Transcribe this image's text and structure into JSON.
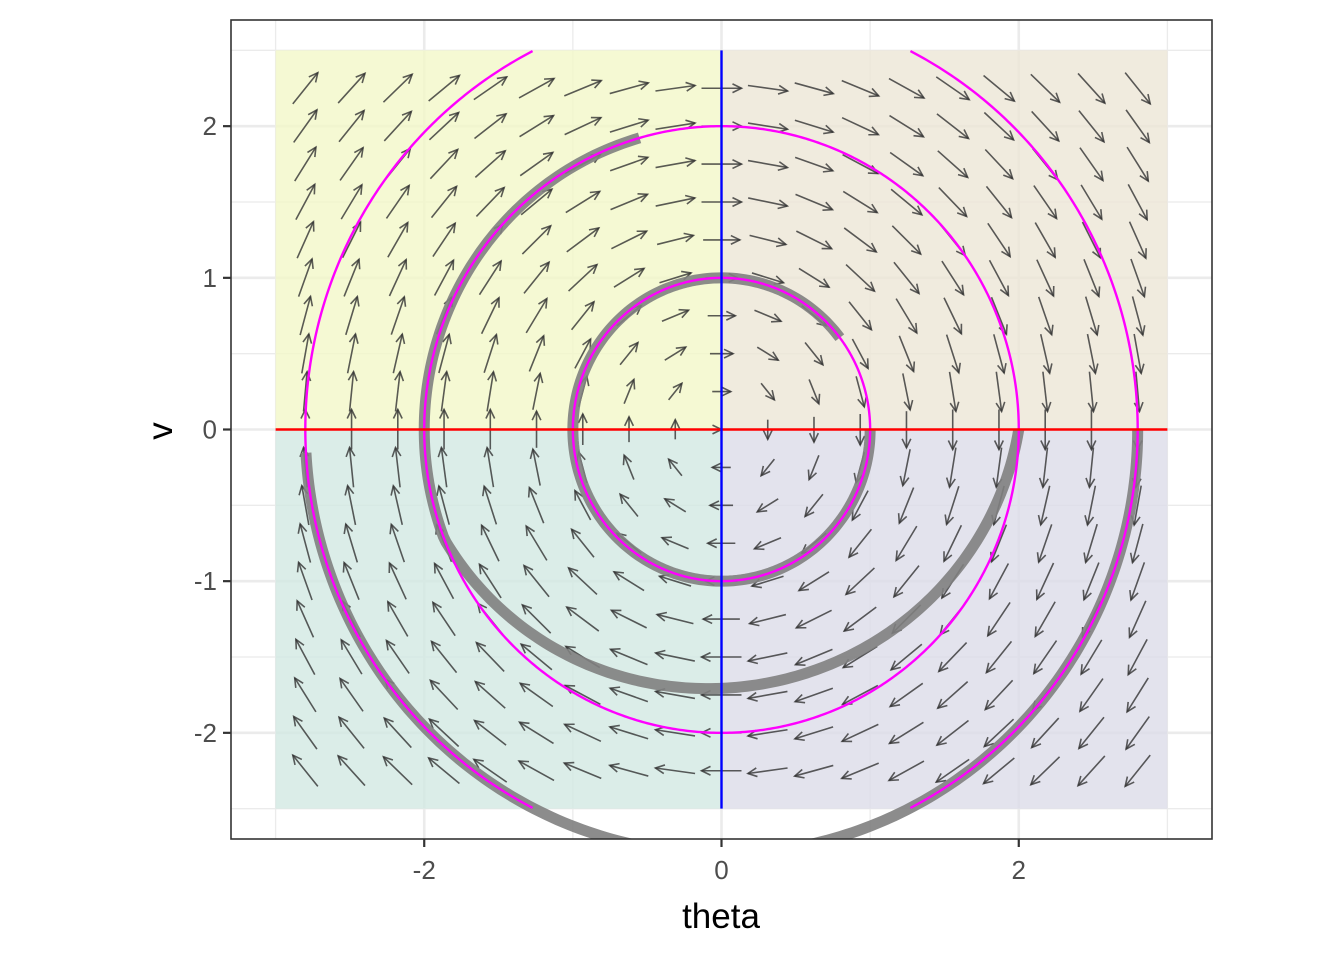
{
  "chart_data": {
    "type": "vector-field",
    "xlabel": "theta",
    "ylabel": "v",
    "xlim": [
      -3.3,
      3.3
    ],
    "ylim": [
      -2.7,
      2.7
    ],
    "x_ticks": [
      -2,
      0,
      2
    ],
    "y_ticks": [
      -2,
      -1,
      0,
      1,
      2
    ],
    "x_tick_labels": [
      "-2",
      "0",
      "2"
    ],
    "y_tick_labels": [
      "-2",
      "-1",
      "0",
      "1",
      "2"
    ],
    "grid": true,
    "colors": {
      "field_arrows": "#333333",
      "circles": "#ff00ff",
      "trajectories": "#808080",
      "v_nullcline": "#ff0000",
      "theta_nullcline": "#0000ff",
      "background_quadrant_top_left": "#f2f8c8",
      "background_quadrant_top_right": "#ece6d6",
      "background_quadrant_bottom_left": "#d2e8e2",
      "background_quadrant_bottom_right": "#dcdce8"
    },
    "field": {
      "theta_range": [
        -2.8,
        2.8
      ],
      "v_range": [
        -2.25,
        2.25
      ],
      "theta_count": 19,
      "v_count": 19,
      "dtheta": "v",
      "dv": "-theta"
    },
    "nullclines": [
      {
        "name": "v = 0",
        "orientation": "horizontal",
        "value": 0,
        "range": [
          -3,
          3
        ]
      },
      {
        "name": "theta = 0",
        "orientation": "vertical",
        "value": 0,
        "range": [
          -2.5,
          2.5
        ]
      }
    ],
    "circles": [
      {
        "radius": 1,
        "clipped_to": {
          "theta": [
            -3,
            3
          ],
          "v": [
            -2.5,
            2.5
          ]
        }
      },
      {
        "radius": 2,
        "clipped_to": {
          "theta": [
            -3,
            3
          ],
          "v": [
            -2.5,
            2.5
          ]
        }
      },
      {
        "radius": 2.8,
        "clipped_to": {
          "theta": [
            -3,
            3
          ],
          "v": [
            -2.5,
            2.5
          ]
        }
      }
    ],
    "trajectories": [
      {
        "start": [
          1.0,
          0.0
        ],
        "end_angle_deg": 37,
        "radius": 1.0
      },
      {
        "start": [
          2.0,
          0.0
        ],
        "end": [
          -0.45,
          1.63
        ],
        "path": "circle-then-spiral"
      },
      {
        "start": [
          2.8,
          0.0
        ],
        "end": [
          -2.75,
          -0.15
        ],
        "radius": 2.8
      }
    ]
  }
}
